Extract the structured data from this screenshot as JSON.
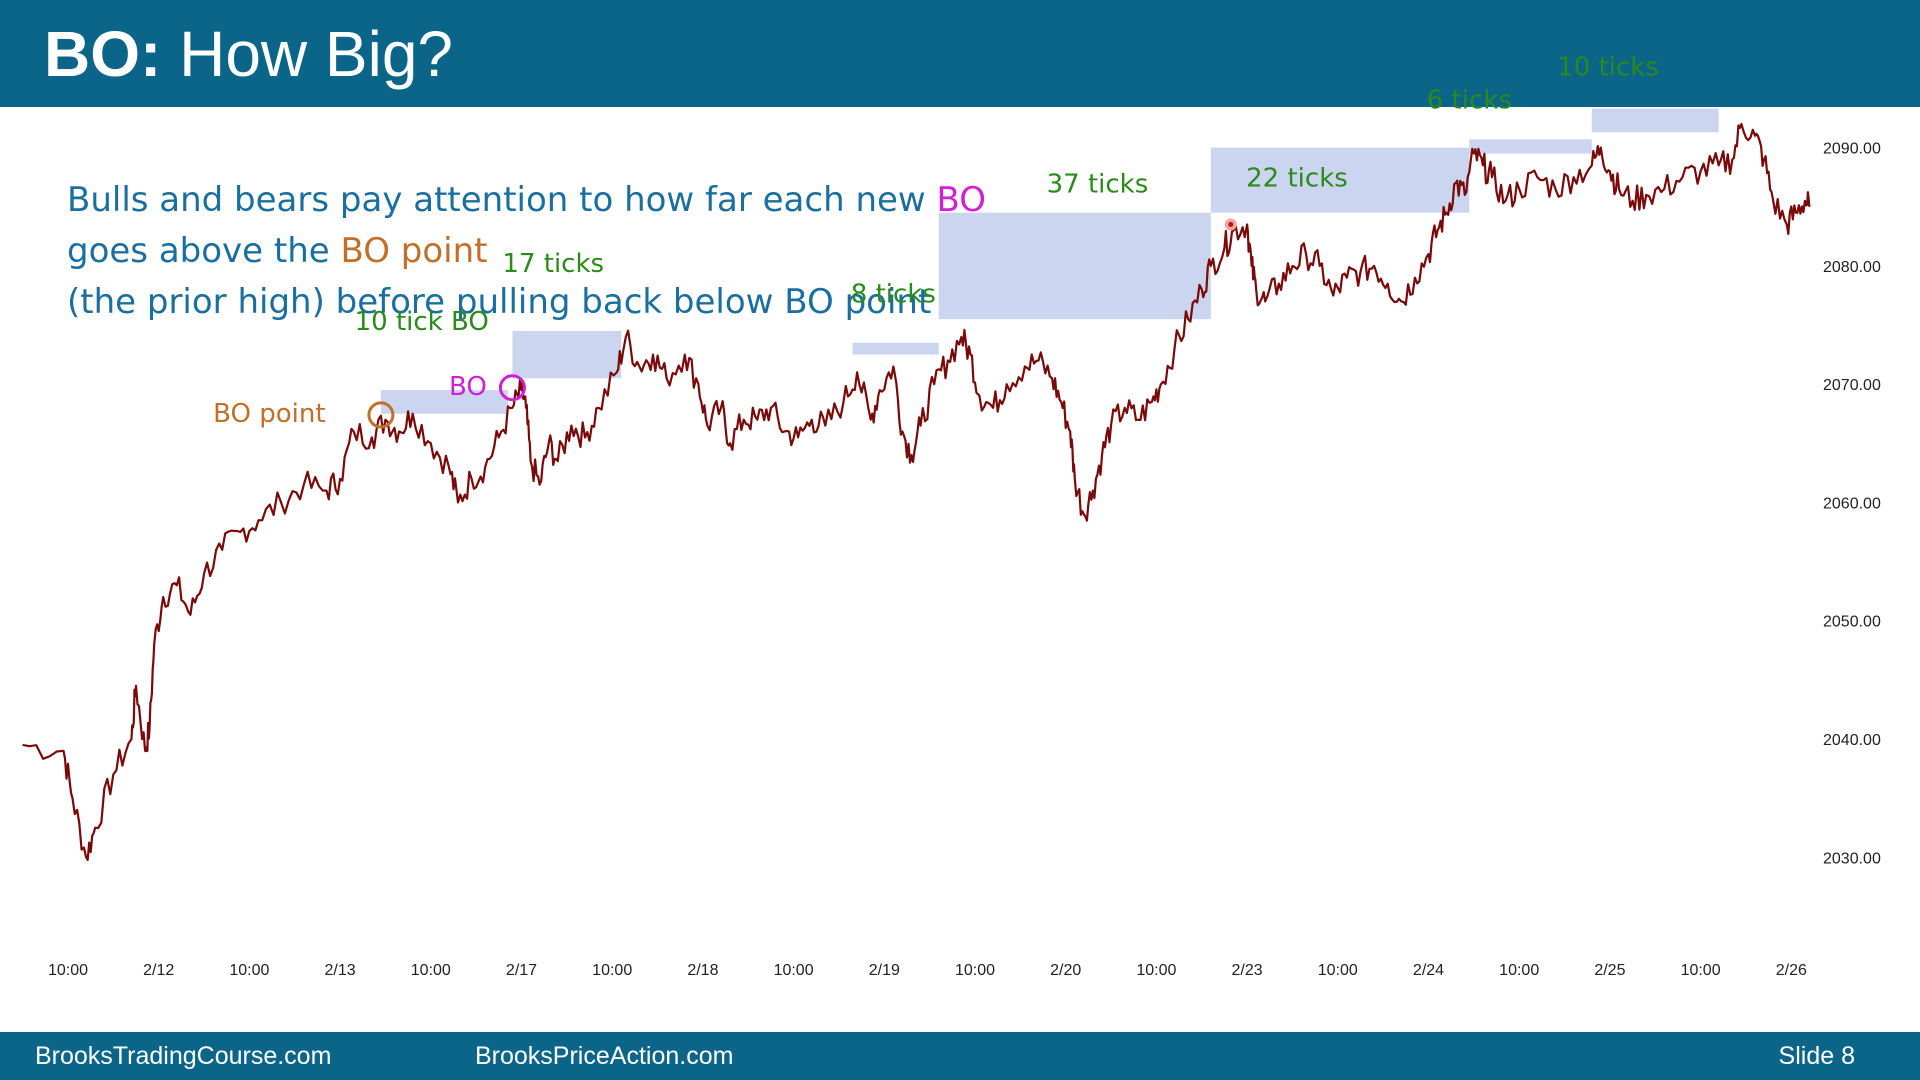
{
  "header": {
    "title_bold": "BO:",
    "title_rest": " How Big?"
  },
  "intro": {
    "line1_a": "Bulls and bears pay attention to how far each new ",
    "line1_b": "BO",
    "line2_a": "goes above the ",
    "line2_b": "BO point",
    "line3": "(the prior high) before pulling back below BO point"
  },
  "colors": {
    "header_bg": "#0b6589",
    "price": "#7a0a0a",
    "box": "#c8d3ef",
    "tick_label": "#2a8a1a",
    "bo": "#d21fd1",
    "bo_point": "#c0702a",
    "intro_text": "#1b6f9e"
  },
  "chart_data": {
    "type": "line",
    "title": "",
    "xlabel": "",
    "ylabel": "",
    "ylim": [
      2022.5,
      2098
    ],
    "yticks": [
      "2030.00",
      "2040.00",
      "2050.00",
      "2060.00",
      "2070.00",
      "2080.00",
      "2090.00"
    ],
    "ytick_values": [
      2030,
      2040,
      2050,
      2060,
      2070,
      2080,
      2090
    ],
    "xticks": [
      "10:00",
      "2/12",
      "10:00",
      "2/13",
      "10:00",
      "2/17",
      "10:00",
      "2/18",
      "10:00",
      "2/19",
      "10:00",
      "2/20",
      "10:00",
      "2/23",
      "10:00",
      "2/24",
      "10:00",
      "2/25",
      "10:00",
      "2/26"
    ],
    "xlim": [
      -0.5,
      19.2
    ],
    "grid": false,
    "series": [
      {
        "values": [
          [
            -0.5,
            2039.5
          ],
          [
            -0.05,
            2039
          ],
          [
            0.05,
            2035
          ],
          [
            0.2,
            2030
          ],
          [
            0.3,
            2032.5
          ],
          [
            0.5,
            2037
          ],
          [
            0.7,
            2040
          ],
          [
            0.75,
            2044.5
          ],
          [
            0.85,
            2039
          ],
          [
            0.9,
            2041
          ],
          [
            0.95,
            2048
          ],
          [
            1.05,
            2052
          ],
          [
            1.2,
            2053
          ],
          [
            1.35,
            2050.5
          ],
          [
            1.5,
            2054
          ],
          [
            1.7,
            2056
          ],
          [
            1.9,
            2057.5
          ],
          [
            2.1,
            2058.5
          ],
          [
            2.35,
            2060
          ],
          [
            2.6,
            2061.5
          ],
          [
            2.85,
            2061
          ],
          [
            3.0,
            2062
          ],
          [
            3.15,
            2066
          ],
          [
            3.35,
            2065.5
          ],
          [
            3.5,
            2067
          ],
          [
            3.65,
            2066
          ],
          [
            3.8,
            2067.5
          ],
          [
            4.0,
            2065
          ],
          [
            4.2,
            2063
          ],
          [
            4.3,
            2060
          ],
          [
            4.45,
            2062
          ],
          [
            4.6,
            2063
          ],
          [
            4.75,
            2065.5
          ],
          [
            4.9,
            2068
          ],
          [
            5.0,
            2069.5
          ],
          [
            5.05,
            2068
          ],
          [
            5.1,
            2063.5
          ],
          [
            5.2,
            2061.5
          ],
          [
            5.3,
            2065
          ],
          [
            5.4,
            2063.5
          ],
          [
            5.55,
            2066.5
          ],
          [
            5.7,
            2065.5
          ],
          [
            5.85,
            2068
          ],
          [
            6.05,
            2071
          ],
          [
            6.15,
            2074
          ],
          [
            6.3,
            2071.5
          ],
          [
            6.45,
            2072.5
          ],
          [
            6.6,
            2070.5
          ],
          [
            6.8,
            2072.5
          ],
          [
            6.95,
            2070
          ],
          [
            7.05,
            2066.5
          ],
          [
            7.2,
            2068
          ],
          [
            7.3,
            2065
          ],
          [
            7.45,
            2067
          ],
          [
            7.6,
            2067
          ],
          [
            7.75,
            2068
          ],
          [
            7.9,
            2066
          ],
          [
            8.05,
            2065.5
          ],
          [
            8.2,
            2067
          ],
          [
            8.35,
            2066.5
          ],
          [
            8.55,
            2068.5
          ],
          [
            8.7,
            2071
          ],
          [
            8.85,
            2067
          ],
          [
            8.95,
            2069.5
          ],
          [
            9.1,
            2071.5
          ],
          [
            9.2,
            2066
          ],
          [
            9.3,
            2064
          ],
          [
            9.4,
            2066.5
          ],
          [
            9.55,
            2070
          ],
          [
            9.7,
            2072
          ],
          [
            9.85,
            2074
          ],
          [
            9.95,
            2072.5
          ],
          [
            10.05,
            2069
          ],
          [
            10.2,
            2068
          ],
          [
            10.35,
            2070
          ],
          [
            10.55,
            2071.5
          ],
          [
            10.7,
            2072
          ],
          [
            10.85,
            2070.5
          ],
          [
            10.95,
            2068.5
          ],
          [
            11.05,
            2066
          ],
          [
            11.1,
            2062
          ],
          [
            11.2,
            2059
          ],
          [
            11.3,
            2061
          ],
          [
            11.4,
            2064
          ],
          [
            11.5,
            2066.5
          ],
          [
            11.65,
            2068
          ],
          [
            11.8,
            2067
          ],
          [
            11.95,
            2068.5
          ],
          [
            12.05,
            2070
          ],
          [
            12.2,
            2073
          ],
          [
            12.35,
            2075.5
          ],
          [
            12.5,
            2078
          ],
          [
            12.6,
            2080
          ],
          [
            12.75,
            2081.5
          ],
          [
            12.85,
            2083
          ],
          [
            13.0,
            2083.5
          ],
          [
            13.05,
            2080
          ],
          [
            13.1,
            2078
          ],
          [
            13.2,
            2077
          ],
          [
            13.35,
            2078.5
          ],
          [
            13.5,
            2080
          ],
          [
            13.65,
            2081
          ],
          [
            13.8,
            2080
          ],
          [
            13.95,
            2077.5
          ],
          [
            14.1,
            2079
          ],
          [
            14.25,
            2079.5
          ],
          [
            14.4,
            2080
          ],
          [
            14.55,
            2078.5
          ],
          [
            14.7,
            2077
          ],
          [
            14.85,
            2079
          ],
          [
            15.0,
            2081
          ],
          [
            15.1,
            2083
          ],
          [
            15.2,
            2084.5
          ],
          [
            15.3,
            2087
          ],
          [
            15.4,
            2086
          ],
          [
            15.5,
            2089.5
          ],
          [
            15.6,
            2088.5
          ],
          [
            15.7,
            2087.5
          ],
          [
            15.85,
            2085.5
          ],
          [
            16.0,
            2086.5
          ],
          [
            16.2,
            2087.5
          ],
          [
            16.4,
            2086.5
          ],
          [
            16.6,
            2087.5
          ],
          [
            16.8,
            2088.5
          ],
          [
            16.9,
            2090
          ],
          [
            17.0,
            2088
          ],
          [
            17.1,
            2086.5
          ],
          [
            17.25,
            2085.5
          ],
          [
            17.4,
            2086
          ],
          [
            17.6,
            2086.5
          ],
          [
            17.8,
            2087.5
          ],
          [
            18.0,
            2088
          ],
          [
            18.2,
            2088.5
          ],
          [
            18.35,
            2089
          ],
          [
            18.45,
            2092
          ],
          [
            18.6,
            2091
          ],
          [
            18.7,
            2089
          ],
          [
            18.8,
            2085.5
          ],
          [
            18.95,
            2083.5
          ],
          [
            19.05,
            2084.5
          ],
          [
            19.15,
            2085.5
          ],
          [
            19.2,
            2085
          ]
        ]
      }
    ],
    "annotations": [
      {
        "type": "box",
        "x0": 3.45,
        "x1": 4.85,
        "y0": 2067.5,
        "y1": 2069.5
      },
      {
        "type": "box",
        "x0": 4.9,
        "x1": 6.1,
        "y0": 2070.5,
        "y1": 2074.5
      },
      {
        "type": "box",
        "x0": 8.65,
        "x1": 9.6,
        "y0": 2072.5,
        "y1": 2073.5
      },
      {
        "type": "box",
        "x0": 9.6,
        "x1": 12.6,
        "y0": 2075.5,
        "y1": 2084.5
      },
      {
        "type": "box",
        "x0": 12.6,
        "x1": 15.45,
        "y0": 2084.5,
        "y1": 2090
      },
      {
        "type": "box",
        "x0": 15.45,
        "x1": 16.8,
        "y0": 2089.5,
        "y1": 2090.7
      },
      {
        "type": "box",
        "x0": 16.8,
        "x1": 18.2,
        "y0": 2091.3,
        "y1": 2093.3
      },
      {
        "type": "label",
        "text": "10 tick BO",
        "x": 3.9,
        "y": 2074.6,
        "kind": "ticks"
      },
      {
        "type": "label",
        "text": "17 ticks",
        "x": 5.35,
        "y": 2079.5,
        "kind": "ticks"
      },
      {
        "type": "label",
        "text": "8 ticks",
        "x": 9.1,
        "y": 2076.9,
        "kind": "ticks"
      },
      {
        "type": "label",
        "text": "37 ticks",
        "x": 11.35,
        "y": 2086.2,
        "kind": "ticks"
      },
      {
        "type": "label",
        "text": "22 ticks",
        "x": 13.55,
        "y": 2086.7,
        "kind": "ticks"
      },
      {
        "type": "label",
        "text": "6 ticks",
        "x": 15.45,
        "y": 2093.3,
        "kind": "ticks"
      },
      {
        "type": "label",
        "text": "10 ticks",
        "x": 16.98,
        "y": 2096.1,
        "kind": "ticks"
      },
      {
        "type": "label",
        "text": "BO point",
        "x": 2.22,
        "y": 2066.8,
        "kind": "bo_point"
      },
      {
        "type": "label",
        "text": "BO",
        "x": 4.41,
        "y": 2069.1,
        "kind": "bo"
      },
      {
        "type": "circle",
        "x": 3.45,
        "y": 2067.4,
        "kind": "bo_point"
      },
      {
        "type": "circle",
        "x": 4.9,
        "y": 2069.7,
        "kind": "bo"
      },
      {
        "type": "dot",
        "x": 12.82,
        "y": 2083.5
      }
    ]
  },
  "footer": {
    "site1": "BrooksTradingCourse.com",
    "site2": "BrooksPriceAction.com",
    "slide": "Slide  8"
  }
}
